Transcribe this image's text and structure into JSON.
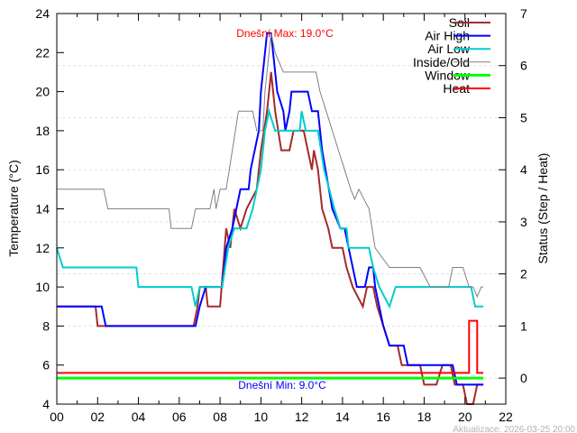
{
  "chart_data": {
    "type": "line",
    "xlabel": "",
    "ylabel": "Temperature (°C)",
    "y2label": "Status (Step / Heat)",
    "xlim": [
      0,
      22
    ],
    "ylim": [
      4,
      24
    ],
    "y2lim": [
      -0.5,
      7
    ],
    "xticks": [
      "00",
      "02",
      "04",
      "06",
      "08",
      "10",
      "12",
      "14",
      "16",
      "18",
      "20",
      "22"
    ],
    "yticks": [
      4,
      6,
      8,
      10,
      12,
      14,
      16,
      18,
      20,
      22,
      24
    ],
    "y2ticks": [
      0,
      1,
      2,
      3,
      4,
      5,
      6,
      7
    ],
    "grid": "horizontal dotted at right-axis ticks",
    "legend_position": "top-right",
    "annotations": {
      "max": "Dnešní Max: 19.0°C",
      "min": "Dnešní Min: 9.0°C",
      "updated": "Aktualizace: 2026-03-25 20:00"
    },
    "series": [
      {
        "name": "Soil",
        "axis": "left",
        "color": "#a52a2a",
        "width": 2,
        "points": [
          [
            0,
            9
          ],
          [
            1.9,
            9
          ],
          [
            2,
            8
          ],
          [
            6.7,
            8
          ],
          [
            6.9,
            9
          ],
          [
            7,
            10
          ],
          [
            7.3,
            10
          ],
          [
            7.4,
            9
          ],
          [
            8,
            9
          ],
          [
            8.3,
            13
          ],
          [
            8.5,
            12
          ],
          [
            8.7,
            14
          ],
          [
            9,
            13
          ],
          [
            9.3,
            14
          ],
          [
            9.8,
            15
          ],
          [
            10,
            17
          ],
          [
            10.3,
            19
          ],
          [
            10.5,
            21
          ],
          [
            10.7,
            19
          ],
          [
            11,
            17
          ],
          [
            11.4,
            17
          ],
          [
            11.6,
            18
          ],
          [
            12.1,
            18
          ],
          [
            12.3,
            17
          ],
          [
            12.5,
            16
          ],
          [
            12.6,
            17
          ],
          [
            12.8,
            16
          ],
          [
            13,
            14
          ],
          [
            13.3,
            13
          ],
          [
            13.5,
            12
          ],
          [
            14,
            12
          ],
          [
            14.2,
            11
          ],
          [
            14.5,
            10
          ],
          [
            15,
            9
          ],
          [
            15.2,
            10
          ],
          [
            15.5,
            10
          ],
          [
            15.7,
            9
          ],
          [
            16,
            8
          ],
          [
            16.3,
            7
          ],
          [
            16.7,
            7
          ],
          [
            16.9,
            6
          ],
          [
            17.8,
            6
          ],
          [
            18,
            5
          ],
          [
            18.6,
            5
          ],
          [
            18.9,
            6
          ],
          [
            19.3,
            6
          ],
          [
            19.5,
            5
          ],
          [
            19.9,
            5
          ],
          [
            20.1,
            4
          ],
          [
            20.4,
            4
          ],
          [
            20.6,
            5
          ],
          [
            20.9,
            5
          ]
        ]
      },
      {
        "name": "Air High",
        "axis": "left",
        "color": "#0000ff",
        "width": 2,
        "points": [
          [
            0,
            9
          ],
          [
            2.2,
            9
          ],
          [
            2.4,
            8
          ],
          [
            6.8,
            8
          ],
          [
            7,
            9
          ],
          [
            7.3,
            10
          ],
          [
            8.1,
            10
          ],
          [
            8.3,
            12
          ],
          [
            8.6,
            13
          ],
          [
            8.8,
            14
          ],
          [
            9,
            15
          ],
          [
            9.4,
            15
          ],
          [
            9.5,
            16
          ],
          [
            9.9,
            18
          ],
          [
            10,
            20
          ],
          [
            10.3,
            23
          ],
          [
            10.5,
            23
          ],
          [
            10.6,
            22
          ],
          [
            10.8,
            20
          ],
          [
            11.1,
            19
          ],
          [
            11.2,
            18
          ],
          [
            11.4,
            19
          ],
          [
            11.5,
            20
          ],
          [
            12.3,
            20
          ],
          [
            12.5,
            19
          ],
          [
            12.8,
            19
          ],
          [
            13,
            17
          ],
          [
            13.5,
            14
          ],
          [
            13.9,
            13
          ],
          [
            14.1,
            13
          ],
          [
            14.3,
            12
          ],
          [
            14.7,
            10
          ],
          [
            15.1,
            10
          ],
          [
            15.3,
            11
          ],
          [
            15.5,
            11
          ],
          [
            15.6,
            10
          ],
          [
            16,
            8
          ],
          [
            16.3,
            7
          ],
          [
            17,
            7
          ],
          [
            17.2,
            6
          ],
          [
            19.4,
            6
          ],
          [
            19.6,
            5
          ],
          [
            20.9,
            5
          ]
        ]
      },
      {
        "name": "Air Low",
        "axis": "left",
        "color": "#00cccc",
        "width": 2,
        "points": [
          [
            0,
            12
          ],
          [
            0.3,
            11
          ],
          [
            3.9,
            11
          ],
          [
            4,
            10
          ],
          [
            6.6,
            10
          ],
          [
            6.8,
            9
          ],
          [
            7,
            10
          ],
          [
            8.1,
            10
          ],
          [
            8.4,
            12
          ],
          [
            8.7,
            13
          ],
          [
            9.3,
            13
          ],
          [
            9.6,
            14
          ],
          [
            10,
            16
          ],
          [
            10.2,
            18
          ],
          [
            10.4,
            19
          ],
          [
            10.7,
            18
          ],
          [
            11.9,
            18
          ],
          [
            12,
            19
          ],
          [
            12.2,
            18
          ],
          [
            12.8,
            18
          ],
          [
            13.1,
            16
          ],
          [
            13.6,
            14
          ],
          [
            13.9,
            13
          ],
          [
            14.2,
            13
          ],
          [
            14.3,
            12
          ],
          [
            15.3,
            12
          ],
          [
            15.5,
            11
          ],
          [
            15.8,
            10
          ],
          [
            16.3,
            9
          ],
          [
            16.6,
            10
          ],
          [
            20.3,
            10
          ],
          [
            20.5,
            9
          ],
          [
            20.9,
            9
          ]
        ]
      },
      {
        "name": "Inside/Old",
        "axis": "left",
        "color": "#808080",
        "width": 1,
        "points": [
          [
            0,
            15
          ],
          [
            2.3,
            15
          ],
          [
            2.5,
            14
          ],
          [
            5.5,
            14
          ],
          [
            5.6,
            13
          ],
          [
            6.6,
            13
          ],
          [
            6.8,
            14
          ],
          [
            7.5,
            14
          ],
          [
            7.7,
            15
          ],
          [
            7.8,
            14
          ],
          [
            8,
            15
          ],
          [
            8.3,
            15
          ],
          [
            8.6,
            17
          ],
          [
            8.9,
            19
          ],
          [
            9.6,
            19
          ],
          [
            9.8,
            18
          ],
          [
            10.1,
            18
          ],
          [
            10.2,
            20
          ],
          [
            10.5,
            23
          ],
          [
            10.7,
            22
          ],
          [
            10.9,
            21.5
          ],
          [
            11.1,
            21
          ],
          [
            12.7,
            21
          ],
          [
            12.9,
            20
          ],
          [
            13.2,
            19
          ],
          [
            13.5,
            18
          ],
          [
            13.8,
            17
          ],
          [
            14.1,
            16
          ],
          [
            14.4,
            15
          ],
          [
            14.6,
            14.5
          ],
          [
            14.8,
            15
          ],
          [
            15.3,
            14
          ],
          [
            15.6,
            12
          ],
          [
            16.3,
            11
          ],
          [
            17.8,
            11
          ],
          [
            18.3,
            10
          ],
          [
            19.2,
            10
          ],
          [
            19.4,
            11
          ],
          [
            19.9,
            11
          ],
          [
            20.2,
            10
          ],
          [
            20.4,
            10
          ],
          [
            20.6,
            9.5
          ],
          [
            20.8,
            10
          ],
          [
            20.9,
            10
          ]
        ]
      },
      {
        "name": "Window",
        "axis": "right",
        "color": "#00ff00",
        "width": 3,
        "points": [
          [
            0,
            0
          ],
          [
            20.9,
            0
          ]
        ]
      },
      {
        "name": "Heat",
        "axis": "right",
        "color": "#ff0000",
        "width": 2,
        "points": [
          [
            0,
            0.1
          ],
          [
            20.2,
            0.1
          ],
          [
            20.2,
            1.1
          ],
          [
            20.6,
            1.1
          ],
          [
            20.6,
            0.1
          ],
          [
            20.9,
            0.1
          ]
        ]
      }
    ]
  }
}
